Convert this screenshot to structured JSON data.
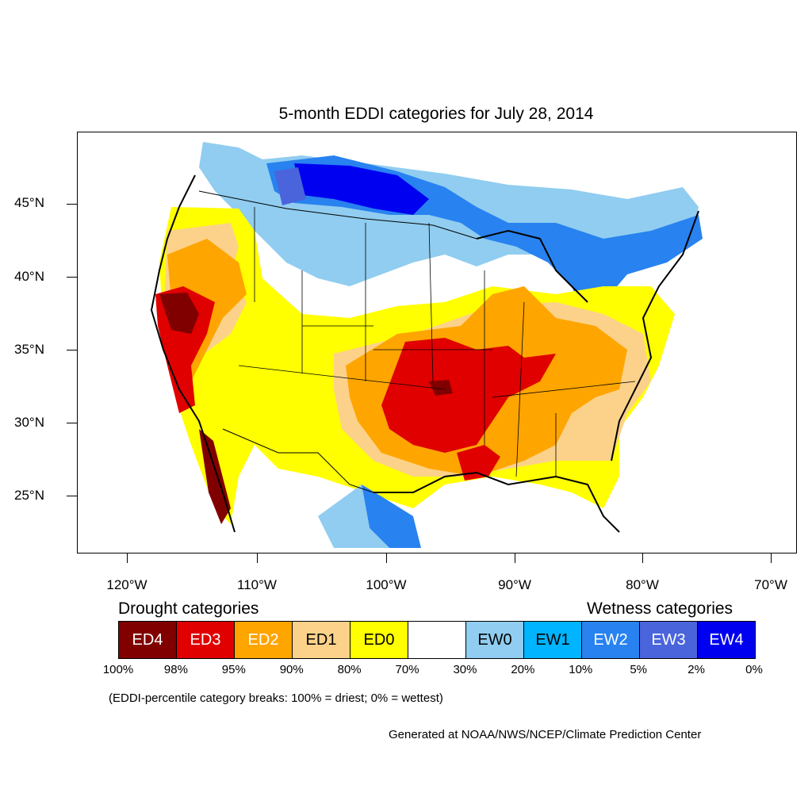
{
  "title": "5-month EDDI categories for July 28, 2014",
  "axes": {
    "lat_labels": [
      "45°N",
      "40°N",
      "35°N",
      "30°N",
      "25°N"
    ],
    "lon_labels": [
      "120°W",
      "110°W",
      "100°W",
      "90°W",
      "80°W",
      "70°W"
    ]
  },
  "legend": {
    "drought_title": "Drought categories",
    "wetness_title": "Wetness categories",
    "categories": [
      {
        "label": "ED4",
        "color": "#800000",
        "text_color": "#ffffff"
      },
      {
        "label": "ED3",
        "color": "#e00000",
        "text_color": "#ffffff"
      },
      {
        "label": "ED2",
        "color": "#ffa500",
        "text_color": "#ffffff"
      },
      {
        "label": "ED1",
        "color": "#fcd28a",
        "text_color": "#000000"
      },
      {
        "label": "ED0",
        "color": "#ffff00",
        "text_color": "#000000"
      },
      {
        "label": "",
        "color": "#ffffff",
        "text_color": "#000000"
      },
      {
        "label": "EW0",
        "color": "#90cdf0",
        "text_color": "#000000"
      },
      {
        "label": "EW1",
        "color": "#00b4ff",
        "text_color": "#000000"
      },
      {
        "label": "EW2",
        "color": "#2882f0",
        "text_color": "#ffffff"
      },
      {
        "label": "EW3",
        "color": "#4a64dc",
        "text_color": "#ffffff"
      },
      {
        "label": "EW4",
        "color": "#0000f0",
        "text_color": "#ffffff"
      }
    ],
    "breaks": [
      "100%",
      "98%",
      "95%",
      "90%",
      "80%",
      "70%",
      "30%",
      "20%",
      "10%",
      "5%",
      "2%",
      "0%"
    ]
  },
  "note": "(EDDI-percentile category breaks: 100% = driest; 0% = wettest)",
  "credit": "Generated at NOAA/NWS/NCEP/Climate Prediction Center"
}
